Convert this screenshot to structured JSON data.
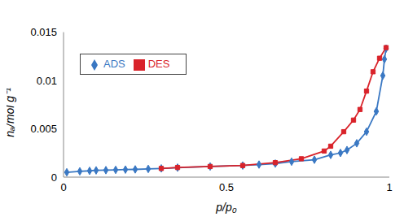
{
  "chart_data": {
    "type": "line",
    "x_label": "p/p₀",
    "y_label": "nₐ/mol g⁻¹",
    "xlim": [
      0,
      1
    ],
    "xticks": [
      0,
      0.5,
      1
    ],
    "ylim": [
      0,
      0.015
    ],
    "yticks": [
      0,
      0.005,
      0.01,
      0.015
    ],
    "grid": false,
    "legend": "upper left",
    "series": [
      {
        "name": "ADS",
        "color": "#3a78c3",
        "marker": "diamond",
        "x": [
          0.01,
          0.05,
          0.08,
          0.1,
          0.13,
          0.16,
          0.19,
          0.22,
          0.26,
          0.3,
          0.35,
          0.45,
          0.55,
          0.6,
          0.65,
          0.7,
          0.77,
          0.82,
          0.85,
          0.87,
          0.9,
          0.93,
          0.96,
          0.98,
          0.985,
          0.99
        ],
        "values": [
          0.0005,
          0.0006,
          0.00065,
          0.0007,
          0.00072,
          0.00075,
          0.00078,
          0.0008,
          0.00085,
          0.0009,
          0.00098,
          0.0011,
          0.0012,
          0.0013,
          0.0014,
          0.0016,
          0.0018,
          0.0023,
          0.0025,
          0.0028,
          0.0035,
          0.0047,
          0.0068,
          0.0105,
          0.0122,
          0.0133
        ]
      },
      {
        "name": "DES",
        "color": "#d9232a",
        "marker": "square",
        "x": [
          0.3,
          0.35,
          0.45,
          0.55,
          0.65,
          0.73,
          0.8,
          0.82,
          0.86,
          0.89,
          0.91,
          0.93,
          0.95,
          0.97,
          0.99
        ],
        "values": [
          0.0009,
          0.001,
          0.0011,
          0.0012,
          0.0015,
          0.0019,
          0.0027,
          0.0032,
          0.0047,
          0.0059,
          0.007,
          0.0089,
          0.0109,
          0.0123,
          0.0134
        ]
      }
    ]
  }
}
